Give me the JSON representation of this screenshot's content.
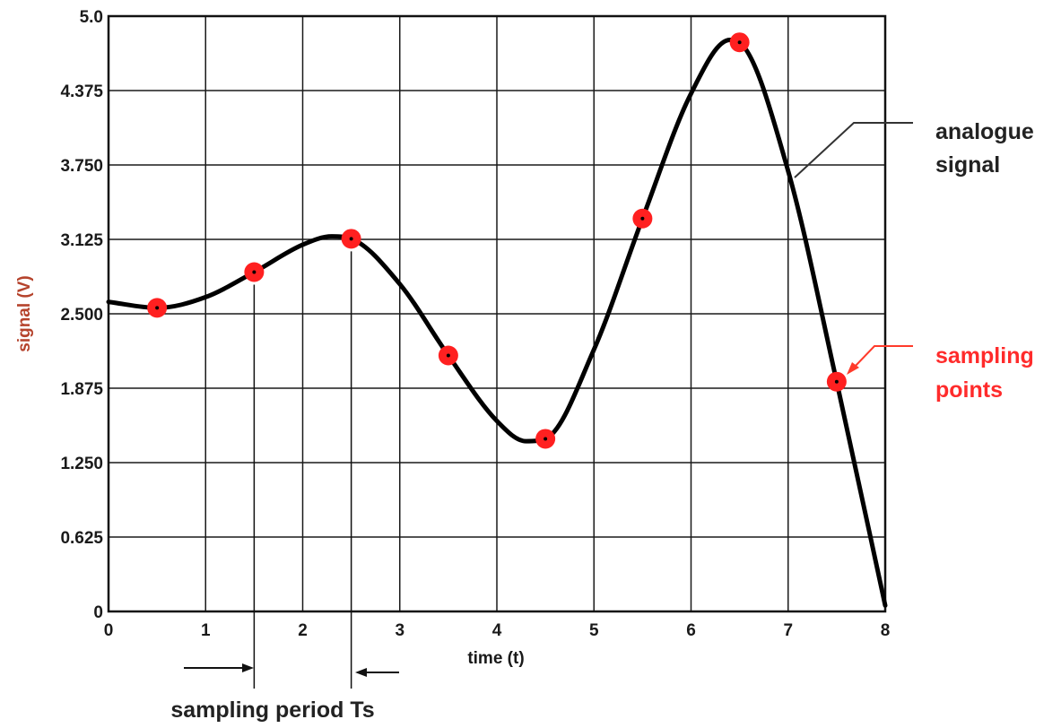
{
  "chart_data": {
    "type": "line",
    "xlabel": "time (t)",
    "ylabel": "signal (V)",
    "xlim": [
      0,
      8
    ],
    "ylim": [
      0,
      5.0
    ],
    "grid": true,
    "x_ticks": [
      "0",
      "1",
      "2",
      "3",
      "4",
      "5",
      "6",
      "7",
      "8"
    ],
    "y_ticks": [
      "0",
      "0.625",
      "1.250",
      "1.875",
      "2.500",
      "3.125",
      "3.750",
      "4.375",
      "5.0"
    ],
    "series": [
      {
        "name": "analogue signal",
        "color": "#000000",
        "x": [
          0,
          0.5,
          1.0,
          1.5,
          2.0,
          2.3,
          2.5,
          3.0,
          3.5,
          4.0,
          4.3,
          4.5,
          5.0,
          5.5,
          6.0,
          6.4,
          6.5,
          7.0,
          7.5,
          8.0
        ],
        "y": [
          2.6,
          2.55,
          2.64,
          2.85,
          3.08,
          3.15,
          3.13,
          2.75,
          2.15,
          1.6,
          1.43,
          1.45,
          2.2,
          3.3,
          4.35,
          4.8,
          4.78,
          3.7,
          1.93,
          0.05
        ]
      },
      {
        "name": "sampling points",
        "color": "#ff2020",
        "x": [
          0.5,
          1.5,
          2.5,
          3.5,
          4.5,
          5.5,
          6.5,
          7.5
        ],
        "y": [
          2.55,
          2.85,
          3.13,
          2.15,
          1.45,
          3.3,
          4.78,
          1.93
        ]
      }
    ],
    "annotations": {
      "analogue_line1": "analogue",
      "analogue_line2": "signal",
      "sampling_line1": "sampling",
      "sampling_line2": "points",
      "period_label": "sampling period Ts"
    }
  }
}
